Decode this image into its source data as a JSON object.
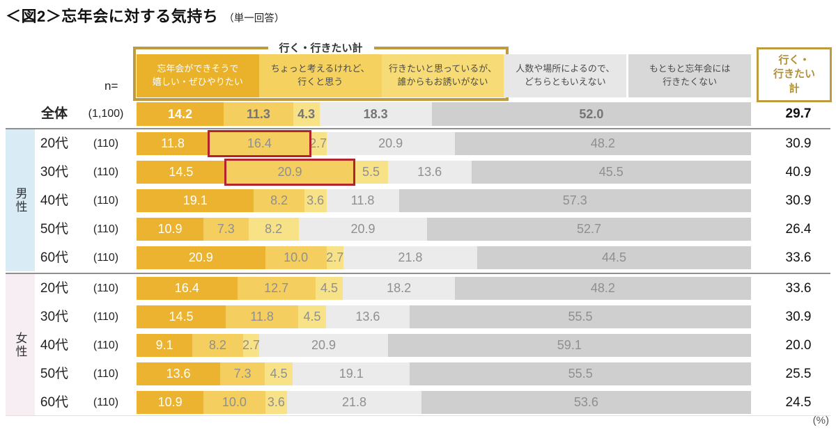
{
  "title": "＜図2＞忘年会に対する気持ち",
  "subtitle": "（単一回答）",
  "bracket_label": "行く・行きたい計",
  "total_column_label": "行く・\n行きたい\n計",
  "n_label": "n=",
  "unit_label": "(%)",
  "colors": {
    "segments": [
      "#EBB32F",
      "#F4CF5F",
      "#F8E287",
      "#EBEBEB",
      "#CFCFCF"
    ],
    "header_bg": [
      "#E9B22A",
      "#F5D25F",
      "#F7DB76",
      "#E7E7E7",
      "#D8D8D8"
    ],
    "header_fg": [
      "#FFFFFF",
      "#4A4A4A",
      "#4A4A4A",
      "#4A4A4A",
      "#4A4A4A"
    ],
    "gold_border": "#C09A3E",
    "gold_text": "#B1903A",
    "highlight_red": "#B3232A",
    "male_band": "#D9EBF5",
    "female_band": "#F6EEF3",
    "value_gray": "#8F8F8F",
    "value_gray_bold": "#757575"
  },
  "columns": [
    "忘年会ができそうで\n嬉しい・ぜひやりたい",
    "ちょっと考えるけれど、\n行くと思う",
    "行きたいと思っているが、\n誰からもお誘いがない",
    "人数や場所によるので、\nどちらともいえない",
    "もともと忘年会には\n行きたくない"
  ],
  "groups": [
    {
      "band_label": "",
      "rows": [
        {
          "label": "全体",
          "n": "(1,100)",
          "values": [
            14.2,
            11.3,
            4.3,
            18.3,
            52.0
          ],
          "total": 29.7,
          "bold": true
        }
      ]
    },
    {
      "band_label": "男性",
      "rows": [
        {
          "label": "20代",
          "n": "(110)",
          "values": [
            11.8,
            16.4,
            2.7,
            20.9,
            48.2
          ],
          "total": 30.9
        },
        {
          "label": "30代",
          "n": "(110)",
          "values": [
            14.5,
            20.9,
            5.5,
            13.6,
            45.5
          ],
          "total": 40.9
        },
        {
          "label": "40代",
          "n": "(110)",
          "values": [
            19.1,
            8.2,
            3.6,
            11.8,
            57.3
          ],
          "total": 30.9
        },
        {
          "label": "50代",
          "n": "(110)",
          "values": [
            10.9,
            7.3,
            8.2,
            20.9,
            52.7
          ],
          "total": 26.4
        },
        {
          "label": "60代",
          "n": "(110)",
          "values": [
            20.9,
            10.0,
            2.7,
            21.8,
            44.5
          ],
          "total": 33.6
        }
      ]
    },
    {
      "band_label": "女性",
      "rows": [
        {
          "label": "20代",
          "n": "(110)",
          "values": [
            16.4,
            12.7,
            4.5,
            18.2,
            48.2
          ],
          "total": 33.6
        },
        {
          "label": "30代",
          "n": "(110)",
          "values": [
            14.5,
            11.8,
            4.5,
            13.6,
            55.5
          ],
          "total": 30.9
        },
        {
          "label": "40代",
          "n": "(110)",
          "values": [
            9.1,
            8.2,
            2.7,
            20.9,
            59.1
          ],
          "total": 20.0
        },
        {
          "label": "50代",
          "n": "(110)",
          "values": [
            13.6,
            7.3,
            4.5,
            19.1,
            55.5
          ],
          "total": 25.5
        },
        {
          "label": "60代",
          "n": "(110)",
          "values": [
            10.9,
            10.0,
            3.6,
            21.8,
            53.6
          ],
          "total": 24.5
        }
      ]
    }
  ],
  "highlights": [
    {
      "group": 1,
      "row": 0,
      "segment": 1
    },
    {
      "group": 1,
      "row": 1,
      "segment": 1
    }
  ],
  "chart_data": {
    "type": "bar",
    "stacked": true,
    "orientation": "horizontal",
    "title": "＜図2＞忘年会に対する気持ち（単一回答）",
    "unit": "%",
    "xlim": [
      0,
      100
    ],
    "categories": [
      "全体",
      "男性20代",
      "男性30代",
      "男性40代",
      "男性50代",
      "男性60代",
      "女性20代",
      "女性30代",
      "女性40代",
      "女性50代",
      "女性60代"
    ],
    "sample_sizes": [
      1100,
      110,
      110,
      110,
      110,
      110,
      110,
      110,
      110,
      110,
      110
    ],
    "series": [
      {
        "name": "忘年会ができそうで嬉しい・ぜひやりたい",
        "color": "#EBB32F",
        "values": [
          14.2,
          11.8,
          14.5,
          19.1,
          10.9,
          20.9,
          16.4,
          14.5,
          9.1,
          13.6,
          10.9
        ]
      },
      {
        "name": "ちょっと考えるけれど、行くと思う",
        "color": "#F4CF5F",
        "values": [
          11.3,
          16.4,
          20.9,
          8.2,
          7.3,
          10.0,
          12.7,
          11.8,
          8.2,
          7.3,
          10.0
        ]
      },
      {
        "name": "行きたいと思っているが、誰からもお誘いがない",
        "color": "#F8E287",
        "values": [
          4.3,
          2.7,
          5.5,
          3.6,
          8.2,
          2.7,
          4.5,
          4.5,
          2.7,
          4.5,
          3.6
        ]
      },
      {
        "name": "人数や場所によるので、どちらともいえない",
        "color": "#EBEBEB",
        "values": [
          18.3,
          20.9,
          13.6,
          11.8,
          20.9,
          21.8,
          18.2,
          13.6,
          20.9,
          19.1,
          21.8
        ]
      },
      {
        "name": "もともと忘年会には行きたくない",
        "color": "#CFCFCF",
        "values": [
          52.0,
          48.2,
          45.5,
          57.3,
          52.7,
          44.5,
          48.2,
          55.5,
          59.1,
          55.5,
          53.6
        ]
      }
    ],
    "going_total": {
      "name": "行く・行きたい計",
      "values": [
        29.7,
        30.9,
        40.9,
        30.9,
        26.4,
        33.6,
        33.6,
        30.9,
        20.0,
        25.5,
        24.5
      ]
    },
    "annotations": [
      "男性20代の「ちょっと考えるけれど、行くと思う」16.4 と 男性30代の 20.9 が赤枠で強調"
    ],
    "legend_position": "top",
    "grid": false
  }
}
